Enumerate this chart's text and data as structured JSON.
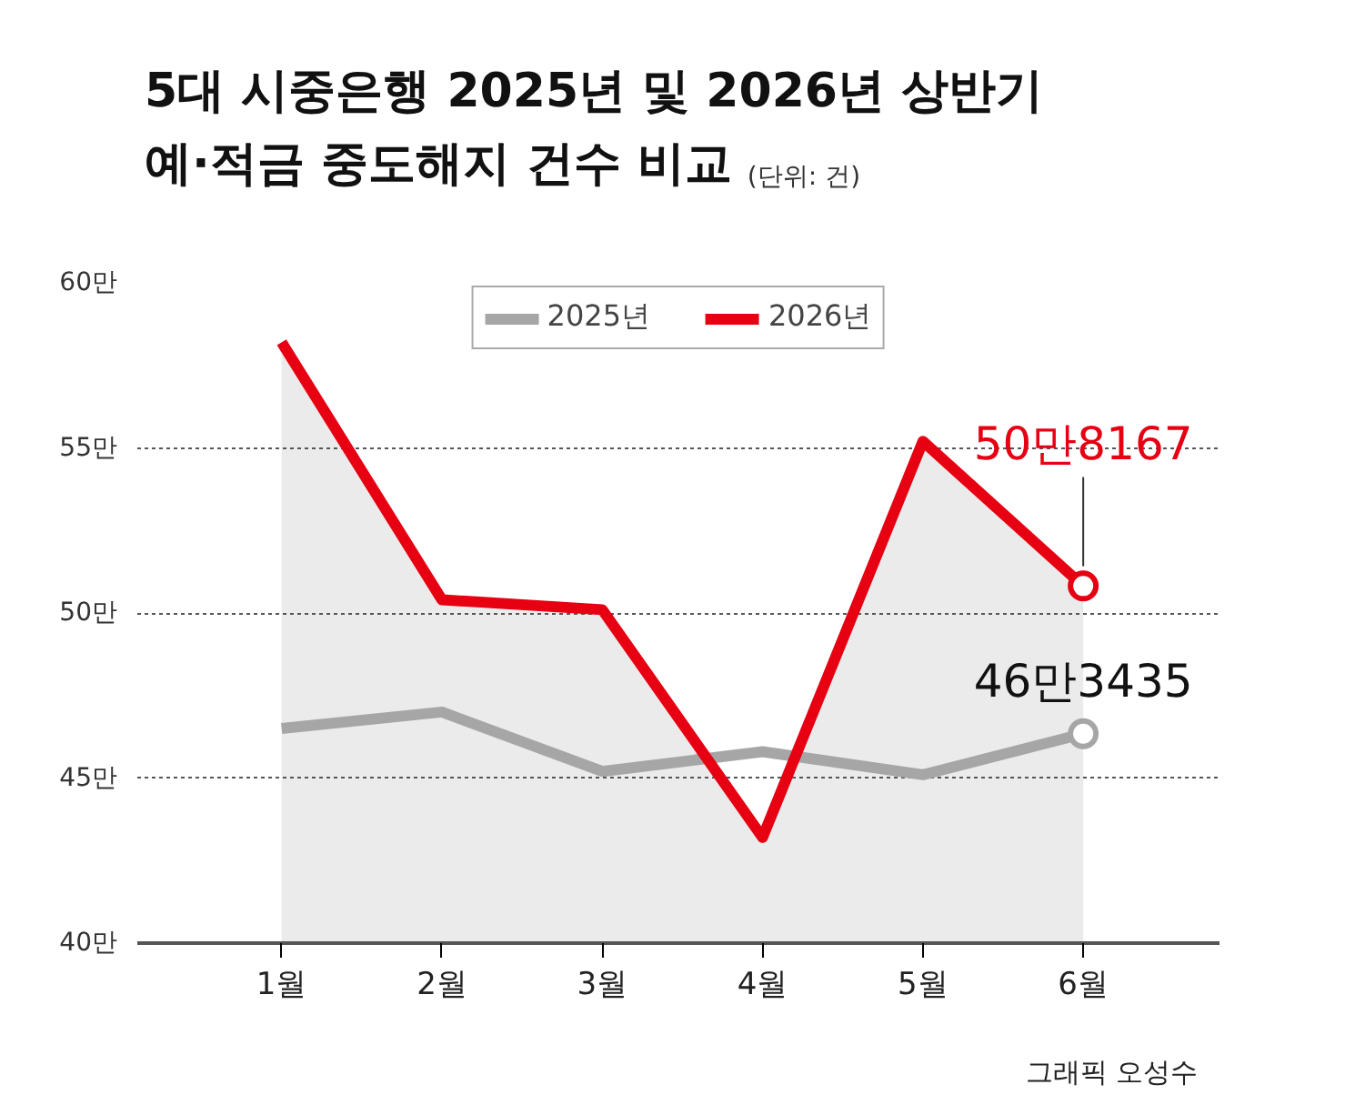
{
  "chart_data": {
    "type": "line",
    "title": "5대 시중은행 2025년 및 2026년 상반기\n예·적금 중도해지 건수 비교",
    "subtitle": "(단위: 건)",
    "categories": [
      "1월",
      "2월",
      "3월",
      "4월",
      "5월",
      "6월"
    ],
    "series": [
      {
        "name": "2025년",
        "color": "#a6a6a6",
        "values": [
          46.5,
          47.0,
          45.2,
          45.8,
          45.1,
          46.3435
        ]
      },
      {
        "name": "2026년",
        "type": "area",
        "color": "#e60012",
        "values": [
          58.2,
          50.4,
          50.1,
          43.2,
          55.2,
          50.8167
        ]
      }
    ],
    "ylim": [
      40,
      60
    ],
    "yticks": [
      {
        "value": 40,
        "label": "40만"
      },
      {
        "value": 45,
        "label": "45만"
      },
      {
        "value": 50,
        "label": "50만"
      },
      {
        "value": 55,
        "label": "55만"
      },
      {
        "value": 60,
        "label": "60만"
      }
    ],
    "grid": "y",
    "legend": "top",
    "annotations": [
      {
        "text": "50만8167",
        "x": "6월",
        "y": 50.8167
      },
      {
        "text": "46만3435",
        "x": "6월",
        "y": 46.3435
      },
      "그래픽 오성수"
    ]
  }
}
